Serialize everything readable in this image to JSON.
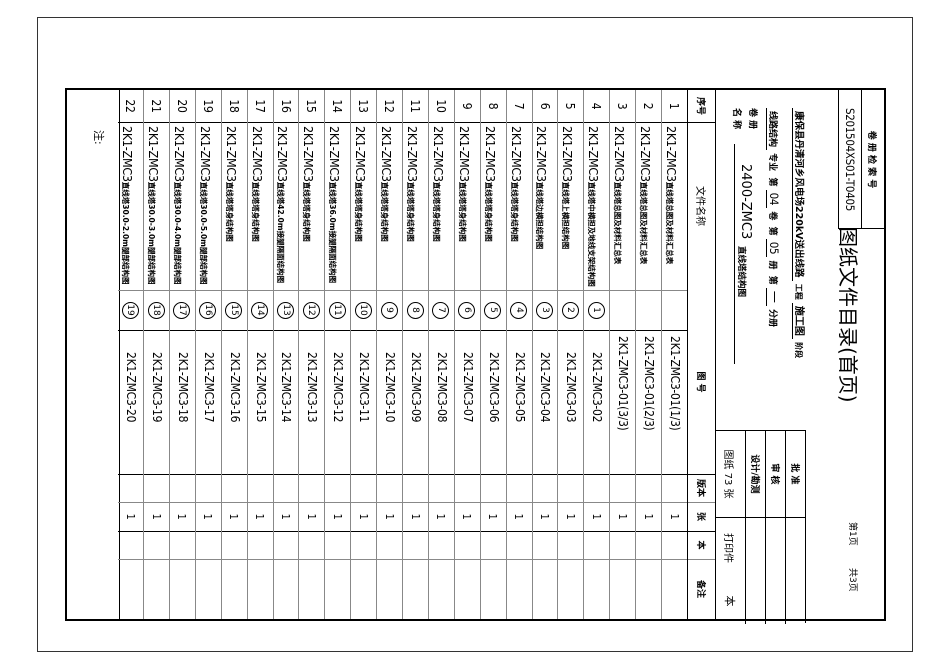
{
  "header": {
    "index_label": "卷 册 检 索 号",
    "index_code": "S201504XS01-T0405",
    "title": "图纸文件目录(首页)",
    "page_current": "第1页",
    "page_total": "共3页",
    "project_name": "康保县丹清河乡风电场220kV送出线路",
    "project_suffix": "工程",
    "stage": "施工图",
    "stage_suffix": "阶段",
    "discipline": "线路结构",
    "discipline_suffix": "专业",
    "di": "第",
    "volume": "04",
    "volume_suffix": "卷",
    "book": "05",
    "book_suffix": "册",
    "sub_book": "一",
    "sub_book_suffix": "分册",
    "volume_name_label_1": "卷 册",
    "volume_name_label_2": "名 称",
    "volume_name_code": "2400-ZMC3",
    "volume_name_text": "直线塔结构图"
  },
  "approval": {
    "approve": "批  准",
    "review": "审  核",
    "design": "设计/勘测",
    "sheets": "图纸 73 张",
    "print": "打印件",
    "print_unit": "本"
  },
  "columns": {
    "no": "序号",
    "name": "文件名称",
    "drawing_no": "图 号",
    "version": "版本",
    "sheets": "张",
    "copies": "本",
    "remarks": "备注"
  },
  "rows": [
    {
      "no": "1",
      "code": "2K1-ZMC3",
      "title": "直线塔总图及材料汇总表",
      "circle": "",
      "drawing_no": "2K1-ZMC3-01(1/3)",
      "sheets": "1"
    },
    {
      "no": "2",
      "code": "2K1-ZMC3",
      "title": "直线塔总图及材料汇总表",
      "circle": "",
      "drawing_no": "2K1-ZMC3-01(2/3)",
      "sheets": "1"
    },
    {
      "no": "3",
      "code": "2K1-ZMC3",
      "title": "直线塔总图及材料汇总表",
      "circle": "",
      "drawing_no": "2K1-ZMC3-01(3/3)",
      "sheets": "1"
    },
    {
      "no": "4",
      "code": "2K1-ZMC3",
      "title": "直线塔中横担及地线支架结构图",
      "circle": "1",
      "drawing_no": "2K1-ZMC3-02",
      "sheets": "1"
    },
    {
      "no": "5",
      "code": "2K1-ZMC3",
      "title": "直线塔上横担结构图",
      "circle": "2",
      "drawing_no": "2K1-ZMC3-03",
      "sheets": "1"
    },
    {
      "no": "6",
      "code": "2K1-ZMC3",
      "title": "直线塔边横担结构图",
      "circle": "3",
      "drawing_no": "2K1-ZMC3-04",
      "sheets": "1"
    },
    {
      "no": "7",
      "code": "2K1-ZMC3",
      "title": "直线塔塔身结构图",
      "circle": "4",
      "drawing_no": "2K1-ZMC3-05",
      "sheets": "1"
    },
    {
      "no": "8",
      "code": "2K1-ZMC3",
      "title": "直线塔塔身结构图",
      "circle": "5",
      "drawing_no": "2K1-ZMC3-06",
      "sheets": "1"
    },
    {
      "no": "9",
      "code": "2K1-ZMC3",
      "title": "直线塔塔身结构图",
      "circle": "6",
      "drawing_no": "2K1-ZMC3-07",
      "sheets": "1"
    },
    {
      "no": "10",
      "code": "2K1-ZMC3",
      "title": "直线塔塔身结构图",
      "circle": "7",
      "drawing_no": "2K1-ZMC3-08",
      "sheets": "1"
    },
    {
      "no": "11",
      "code": "2K1-ZMC3",
      "title": "直线塔塔身结构图",
      "circle": "8",
      "drawing_no": "2K1-ZMC3-09",
      "sheets": "1"
    },
    {
      "no": "12",
      "code": "2K1-ZMC3",
      "title": "直线塔塔身结构图",
      "circle": "9",
      "drawing_no": "2K1-ZMC3-10",
      "sheets": "1"
    },
    {
      "no": "13",
      "code": "2K1-ZMC3",
      "title": "直线塔塔身结构图",
      "circle": "10",
      "drawing_no": "2K1-ZMC3-11",
      "sheets": "1"
    },
    {
      "no": "14",
      "code": "2K1-ZMC3",
      "title": "直线塔36.0m接腿隔面结构图",
      "circle": "11",
      "drawing_no": "2K1-ZMC3-12",
      "sheets": "1"
    },
    {
      "no": "15",
      "code": "2K1-ZMC3",
      "title": "直线塔塔身结构图",
      "circle": "12",
      "drawing_no": "2K1-ZMC3-13",
      "sheets": "1"
    },
    {
      "no": "16",
      "code": "2K1-ZMC3",
      "title": "直线塔42.0m接腿隔面结构图",
      "circle": "13",
      "drawing_no": "2K1-ZMC3-14",
      "sheets": "1"
    },
    {
      "no": "17",
      "code": "2K1-ZMC3",
      "title": "直线塔塔身结构图",
      "circle": "14",
      "drawing_no": "2K1-ZMC3-15",
      "sheets": "1"
    },
    {
      "no": "18",
      "code": "2K1-ZMC3",
      "title": "直线塔塔身结构图",
      "circle": "15",
      "drawing_no": "2K1-ZMC3-16",
      "sheets": "1"
    },
    {
      "no": "19",
      "code": "2K1-ZMC3",
      "title": "直线塔30.0-5.0m腿部结构图",
      "circle": "16",
      "drawing_no": "2K1-ZMC3-17",
      "sheets": "1"
    },
    {
      "no": "20",
      "code": "2K1-ZMC3",
      "title": "直线塔30.0-4.0m腿部结构图",
      "circle": "17",
      "drawing_no": "2K1-ZMC3-18",
      "sheets": "1"
    },
    {
      "no": "21",
      "code": "2K1-ZMC3",
      "title": "直线塔30.0-3.0m腿部结构图",
      "circle": "18",
      "drawing_no": "2K1-ZMC3-19",
      "sheets": "1"
    },
    {
      "no": "22",
      "code": "2K1-ZMC3",
      "title": "直线塔30.0-2.0m腿部结构图",
      "circle": "19",
      "drawing_no": "2K1-ZMC3-20",
      "sheets": "1"
    }
  ],
  "notes_label": "注:"
}
